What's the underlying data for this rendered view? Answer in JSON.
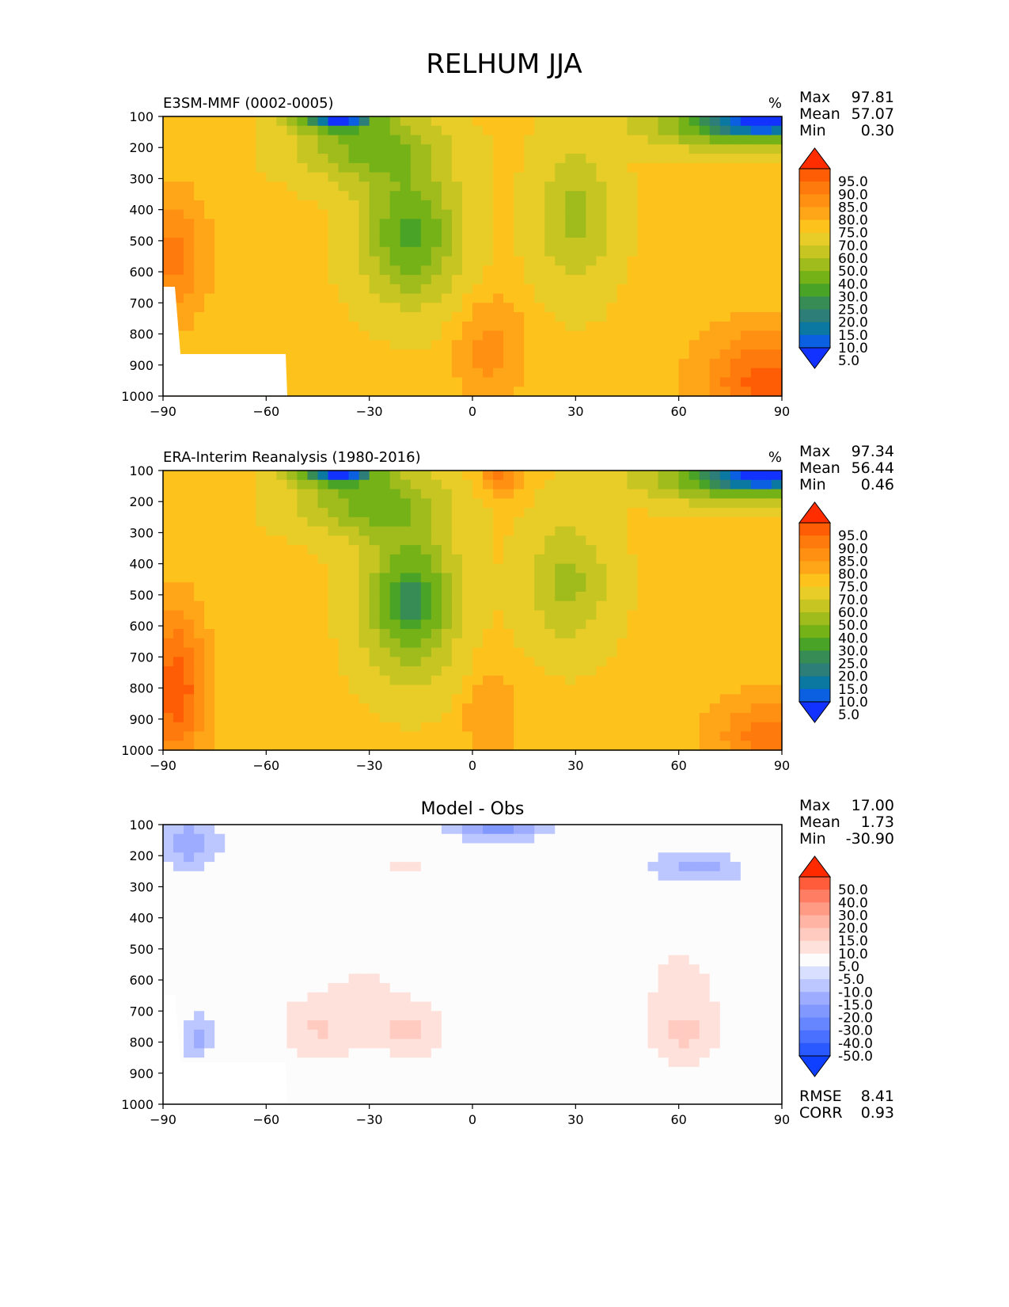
{
  "figure_title": "RELHUM JJA",
  "colors": {
    "main_levels": [
      "#1232ff",
      "#0a60e0",
      "#0a78a0",
      "#2d7d78",
      "#378c55",
      "#48a326",
      "#74b217",
      "#9fbb1c",
      "#c6c522",
      "#e8cd28",
      "#fec21d",
      "#ffa618",
      "#ff9012",
      "#ff7a0c",
      "#ff5c06",
      "#ff2d00"
    ],
    "diff_levels": [
      "#1040ff",
      "#2959ff",
      "#4a70ff",
      "#6686ff",
      "#8199ff",
      "#9eacff",
      "#bcc6ff",
      "#d9e0ff",
      "#fcfcfc",
      "#ffe1db",
      "#ffcbc1",
      "#ffb4a4",
      "#ff9a85",
      "#ff7e63",
      "#ff5c3c",
      "#ff2a00"
    ]
  },
  "chart_data": [
    {
      "type": "heatmap",
      "id": "model",
      "title_left": "E3SM-MMF (0002-0005)",
      "units": "%",
      "xlabel": "",
      "ylabel": "",
      "xlim": [
        -90,
        90
      ],
      "ylim": [
        1000,
        100
      ],
      "x_ticks": [
        "−90",
        "−60",
        "−30",
        "0",
        "30",
        "60",
        "90"
      ],
      "y_ticks": [
        "100",
        "200",
        "300",
        "400",
        "500",
        "600",
        "700",
        "800",
        "900",
        "1000"
      ],
      "stats": {
        "max_label": "Max",
        "max": "97.81",
        "mean_label": "Mean",
        "mean": "57.07",
        "min_label": "Min",
        "min": "0.30"
      },
      "colorbar": {
        "labels": [
          "95.0",
          "90.0",
          "85.0",
          "80.0",
          "75.0",
          "70.0",
          "60.0",
          "50.0",
          "40.0",
          "30.0",
          "25.0",
          "20.0",
          "15.0",
          "10.0",
          "5.0"
        ]
      },
      "base_value": 72,
      "features": [
        {
          "lat": -18,
          "p": 480,
          "sx": 14,
          "sp": 210,
          "amp": -45
        },
        {
          "lat": -30,
          "p": 200,
          "sx": 20,
          "sp": 110,
          "amp": -35
        },
        {
          "lat": 30,
          "p": 420,
          "sx": 11,
          "sp": 230,
          "amp": -25
        },
        {
          "lat": 85,
          "p": 120,
          "sx": 30,
          "sp": 75,
          "amp": -70
        },
        {
          "lat": -40,
          "p": 100,
          "sx": 12,
          "sp": 45,
          "amp": -60
        },
        {
          "lat": 5,
          "p": 850,
          "sx": 10,
          "sp": 180,
          "amp": 10
        },
        {
          "lat": 85,
          "p": 950,
          "sx": 18,
          "sp": 160,
          "amp": 20
        },
        {
          "lat": -88,
          "p": 550,
          "sx": 10,
          "sp": 200,
          "amp": 15
        }
      ]
    },
    {
      "type": "heatmap",
      "id": "obs",
      "title_left": "ERA-Interim Reanalysis (1980-2016)",
      "units": "%",
      "xlabel": "",
      "ylabel": "",
      "xlim": [
        -90,
        90
      ],
      "ylim": [
        1000,
        100
      ],
      "x_ticks": [
        "−90",
        "−60",
        "−30",
        "0",
        "30",
        "60",
        "90"
      ],
      "y_ticks": [
        "100",
        "200",
        "300",
        "400",
        "500",
        "600",
        "700",
        "800",
        "900",
        "1000"
      ],
      "stats": {
        "max_label": "Max",
        "max": "97.34",
        "mean_label": "Mean",
        "mean": "56.44",
        "min_label": "Min",
        "min": "0.46"
      },
      "colorbar": {
        "labels": [
          "95.0",
          "90.0",
          "85.0",
          "80.0",
          "75.0",
          "70.0",
          "60.0",
          "50.0",
          "40.0",
          "30.0",
          "25.0",
          "20.0",
          "15.0",
          "10.0",
          "5.0"
        ]
      },
      "base_value": 72,
      "features": [
        {
          "lat": -18,
          "p": 520,
          "sx": 13,
          "sp": 230,
          "amp": -50
        },
        {
          "lat": -30,
          "p": 200,
          "sx": 20,
          "sp": 110,
          "amp": -35
        },
        {
          "lat": 28,
          "p": 460,
          "sx": 12,
          "sp": 200,
          "amp": -25
        },
        {
          "lat": 85,
          "p": 120,
          "sx": 30,
          "sp": 75,
          "amp": -70
        },
        {
          "lat": -40,
          "p": 100,
          "sx": 12,
          "sp": 45,
          "amp": -60
        },
        {
          "lat": 8,
          "p": 120,
          "sx": 6,
          "sp": 60,
          "amp": 15
        },
        {
          "lat": 5,
          "p": 880,
          "sx": 8,
          "sp": 150,
          "amp": 8
        },
        {
          "lat": -86,
          "p": 800,
          "sx": 8,
          "sp": 250,
          "amp": 22
        },
        {
          "lat": 85,
          "p": 950,
          "sx": 15,
          "sp": 120,
          "amp": 15
        }
      ]
    },
    {
      "type": "heatmap",
      "id": "diff",
      "title_center": "Model - Obs",
      "xlabel": "",
      "ylabel": "",
      "xlim": [
        -90,
        90
      ],
      "ylim": [
        1000,
        100
      ],
      "x_ticks": [
        "−90",
        "−60",
        "−30",
        "0",
        "30",
        "60",
        "90"
      ],
      "y_ticks": [
        "100",
        "200",
        "300",
        "400",
        "500",
        "600",
        "700",
        "800",
        "900",
        "1000"
      ],
      "stats": {
        "max_label": "Max",
        "max": "17.00",
        "mean_label": "Mean",
        "mean": "1.73",
        "min_label": "Min",
        "min": "-30.90"
      },
      "extra_stats": {
        "rmse_label": "RMSE",
        "rmse": "8.41",
        "corr_label": "CORR",
        "corr": "0.93"
      },
      "colorbar": {
        "labels": [
          "50.0",
          "40.0",
          "30.0",
          "20.0",
          "15.0",
          "10.0",
          "5.0",
          "-5.0",
          "-10.0",
          "-15.0",
          "-20.0",
          "-30.0",
          "-40.0",
          "-50.0"
        ]
      },
      "base_value": 0,
      "features": [
        {
          "lat": 7,
          "p": 115,
          "sx": 15,
          "sp": 35,
          "amp": -16
        },
        {
          "lat": -82,
          "p": 160,
          "sx": 10,
          "sp": 80,
          "amp": -14
        },
        {
          "lat": 65,
          "p": 240,
          "sx": 15,
          "sp": 60,
          "amp": -13
        },
        {
          "lat": -18,
          "p": 770,
          "sx": 10,
          "sp": 80,
          "amp": 9
        },
        {
          "lat": -45,
          "p": 760,
          "sx": 12,
          "sp": 100,
          "amp": 8
        },
        {
          "lat": 62,
          "p": 780,
          "sx": 10,
          "sp": 120,
          "amp": 9
        },
        {
          "lat": 60,
          "p": 550,
          "sx": 25,
          "sp": 250,
          "amp": 5
        },
        {
          "lat": -30,
          "p": 600,
          "sx": 25,
          "sp": 250,
          "amp": 5
        },
        {
          "lat": -80,
          "p": 780,
          "sx": 5,
          "sp": 80,
          "amp": -12
        },
        {
          "lat": -20,
          "p": 230,
          "sx": 8,
          "sp": 40,
          "amp": 6
        }
      ]
    }
  ]
}
